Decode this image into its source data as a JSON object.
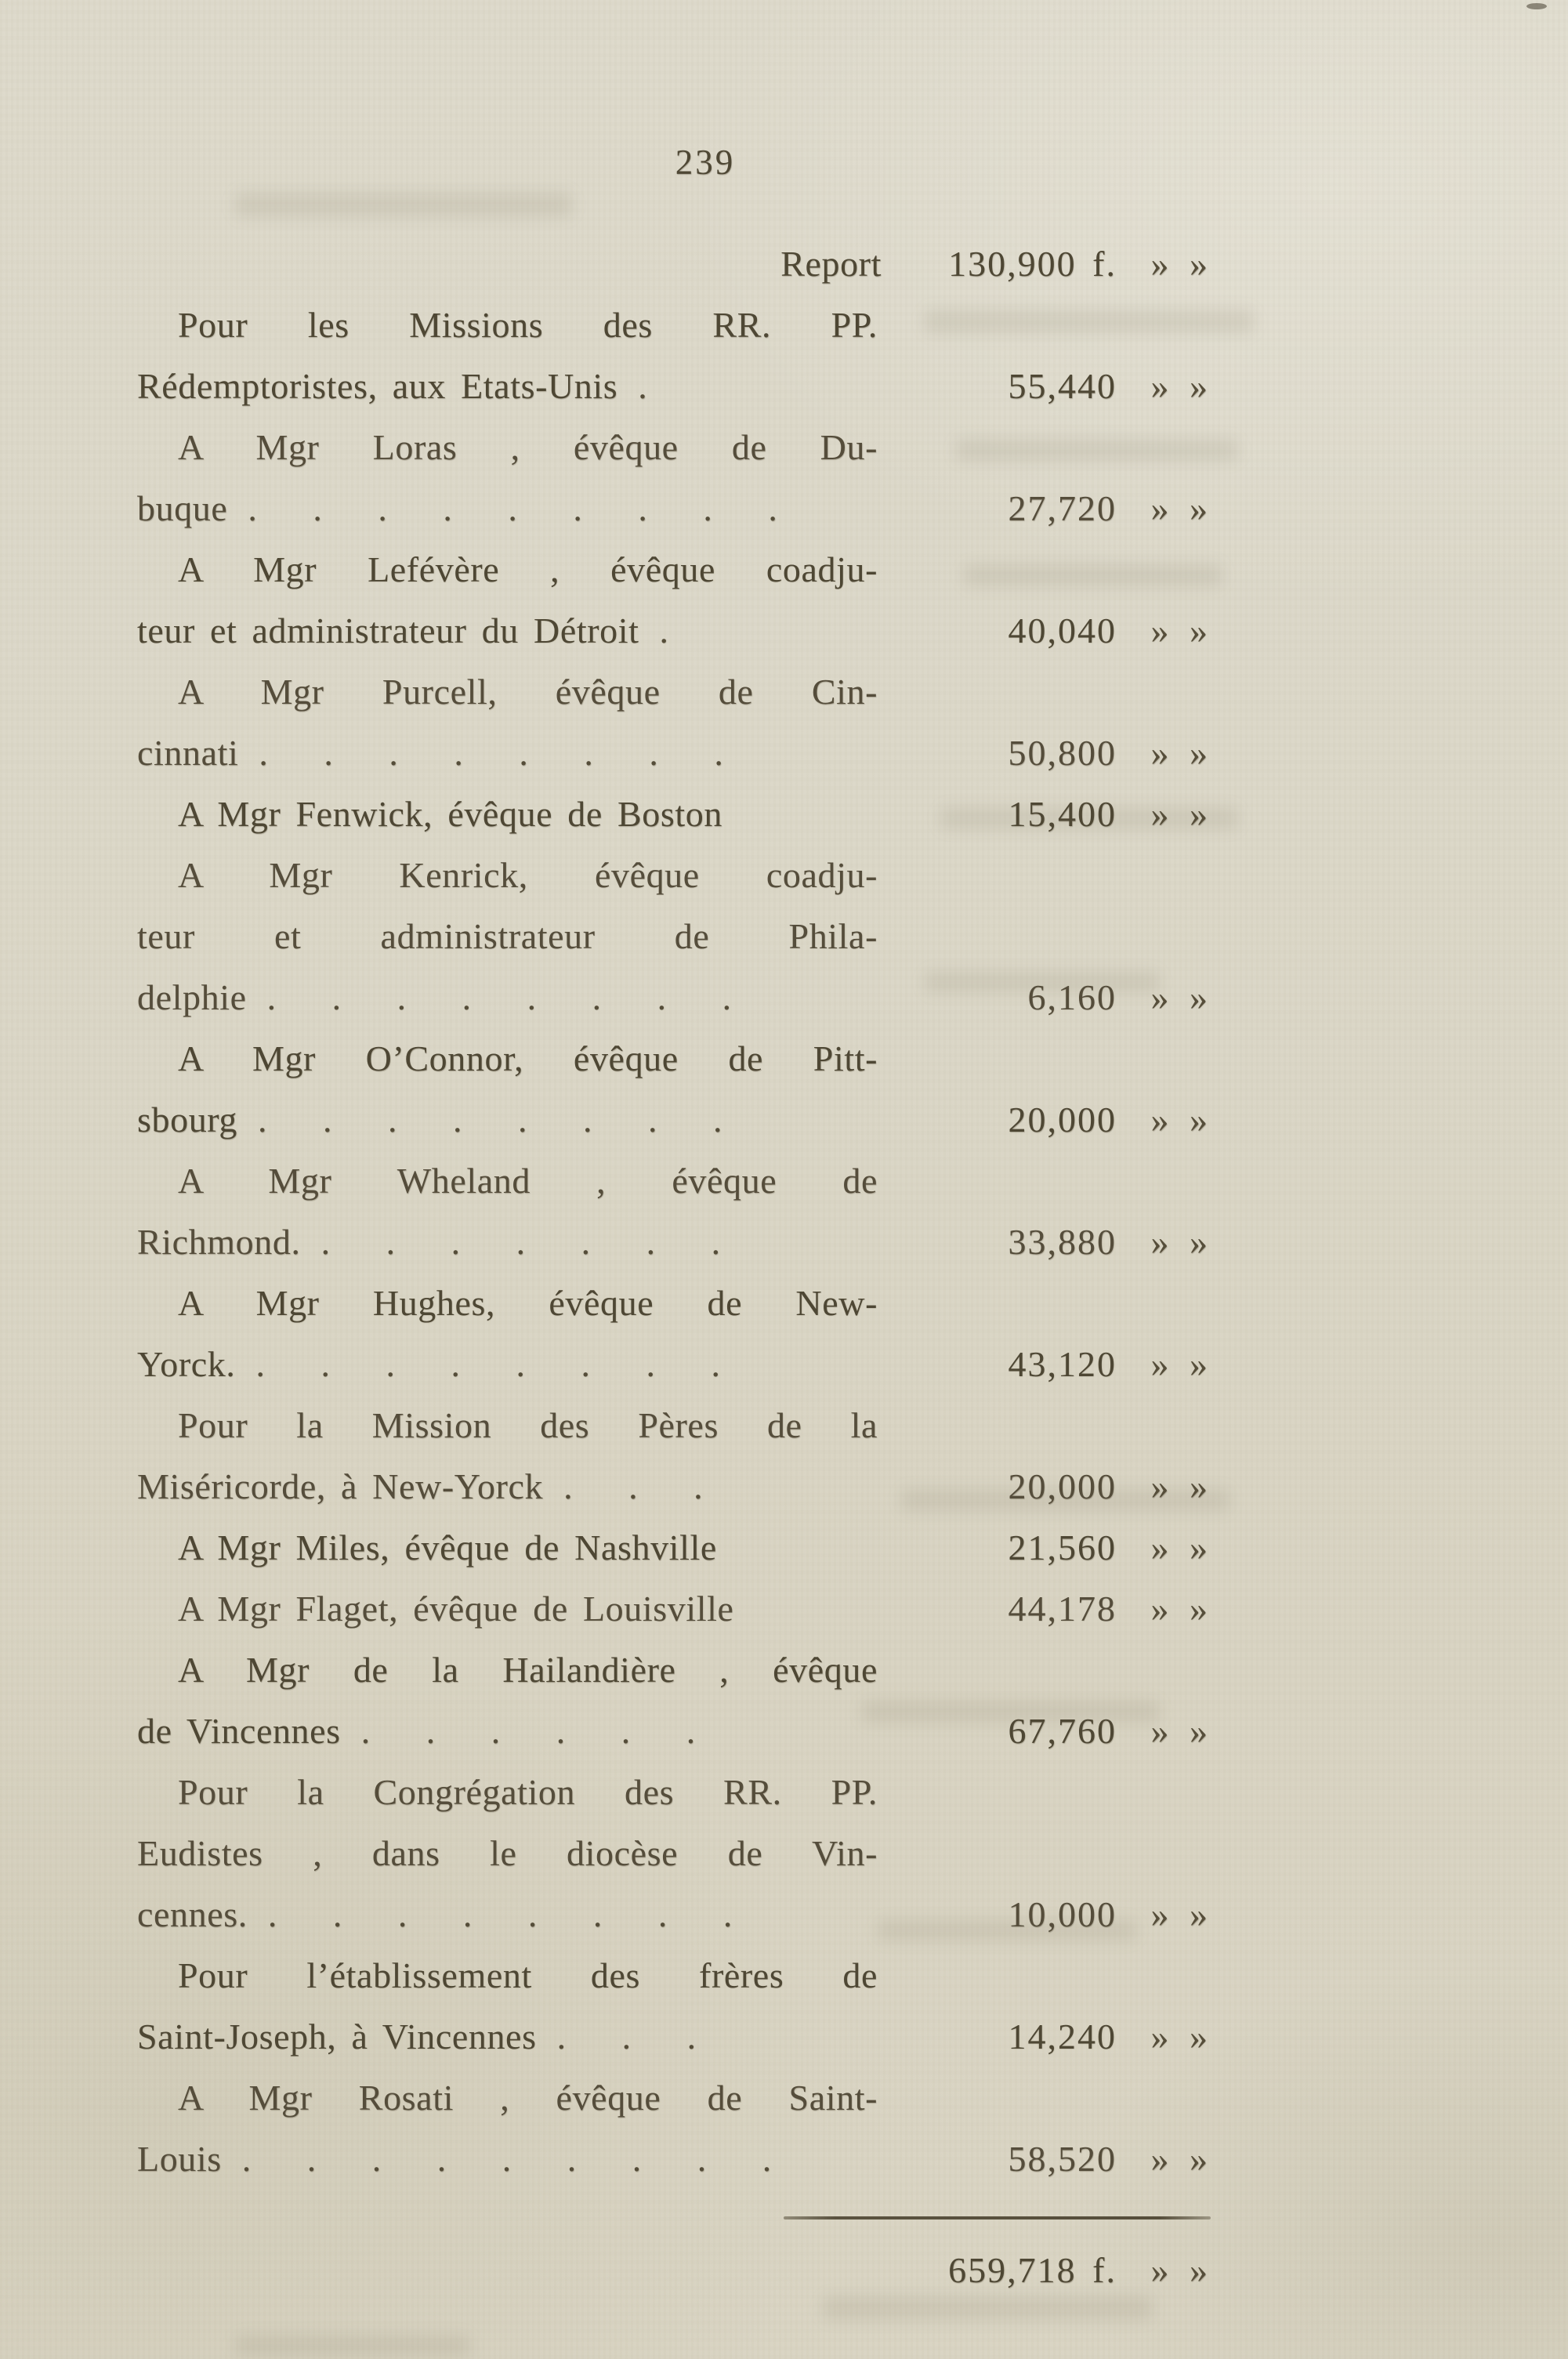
{
  "page": {
    "number": "239",
    "report": {
      "label": "Report",
      "amount": "130,900 f.",
      "suffix": "» »"
    },
    "entries": [
      {
        "lines": [
          "Pour les Missions des RR. PP.",
          "Rédemptoristes, aux Etats-Unis"
        ],
        "dots": ".",
        "amount": "55,440",
        "suffix": "» »"
      },
      {
        "lines": [
          "A Mgr Loras , évêque de Du-",
          "buque"
        ],
        "dots": ". . . . . . . . .",
        "amount": "27,720",
        "suffix": "» »"
      },
      {
        "lines": [
          "A Mgr Lefévère , évêque coadju-",
          "teur et administrateur du Détroit"
        ],
        "dots": ".",
        "amount": "40,040",
        "suffix": "» »"
      },
      {
        "lines": [
          "A Mgr Purcell, évêque de Cin-",
          "cinnati"
        ],
        "dots": ". . . . . . . .",
        "amount": "50,800",
        "suffix": "» »"
      },
      {
        "lines": [
          "A Mgr Fenwick, évêque de Boston"
        ],
        "dots": "",
        "amount": "15,400",
        "suffix": "» »"
      },
      {
        "lines": [
          "A Mgr Kenrick, évêque coadju-",
          "teur et administrateur de Phila-",
          "delphie"
        ],
        "dots": ". . . . . . . .",
        "amount": "6,160",
        "suffix": "» »"
      },
      {
        "lines": [
          "A Mgr O’Connor, évêque de Pitt-",
          "sbourg"
        ],
        "dots": ". . . . . . . .",
        "amount": "20,000",
        "suffix": "» »"
      },
      {
        "lines": [
          "A Mgr Wheland , évêque de",
          "Richmond."
        ],
        "dots": ". . . . . . .",
        "amount": "33,880",
        "suffix": "» »"
      },
      {
        "lines": [
          "A Mgr Hughes, évêque de New-",
          "Yorck."
        ],
        "dots": ". . . . . . . .",
        "amount": "43,120",
        "suffix": "» »"
      },
      {
        "lines": [
          "Pour la Mission des Pères de la",
          "Miséricorde, à New-Yorck"
        ],
        "dots": ". . .",
        "amount": "20,000",
        "suffix": "» »"
      },
      {
        "lines": [
          "A Mgr Miles, évêque de Nashville"
        ],
        "dots": "",
        "amount": "21,560",
        "suffix": "» »"
      },
      {
        "lines": [
          "A Mgr Flaget, évêque de Louisville"
        ],
        "dots": "",
        "amount": "44,178",
        "suffix": "» »"
      },
      {
        "lines": [
          "A Mgr de la Hailandière , évêque",
          "de Vincennes"
        ],
        "dots": ". . . . . .",
        "amount": "67,760",
        "suffix": "» »"
      },
      {
        "lines": [
          "Pour la Congrégation des RR. PP.",
          "Eudistes , dans le diocèse de Vin-",
          "cennes."
        ],
        "dots": ". . . . . . . .",
        "amount": "10,000",
        "suffix": "» »"
      },
      {
        "lines": [
          "Pour l’établissement des frères de",
          "Saint-Joseph, à Vincennes"
        ],
        "dots": ". . .",
        "amount": "14,240",
        "suffix": "» »"
      },
      {
        "lines": [
          "A Mgr Rosati , évêque de Saint-",
          "Louis"
        ],
        "dots": ". . . . . . . . .",
        "amount": "58,520",
        "suffix": "» »"
      }
    ],
    "total": {
      "amount": "659,718 f.",
      "suffix": "» »"
    }
  }
}
